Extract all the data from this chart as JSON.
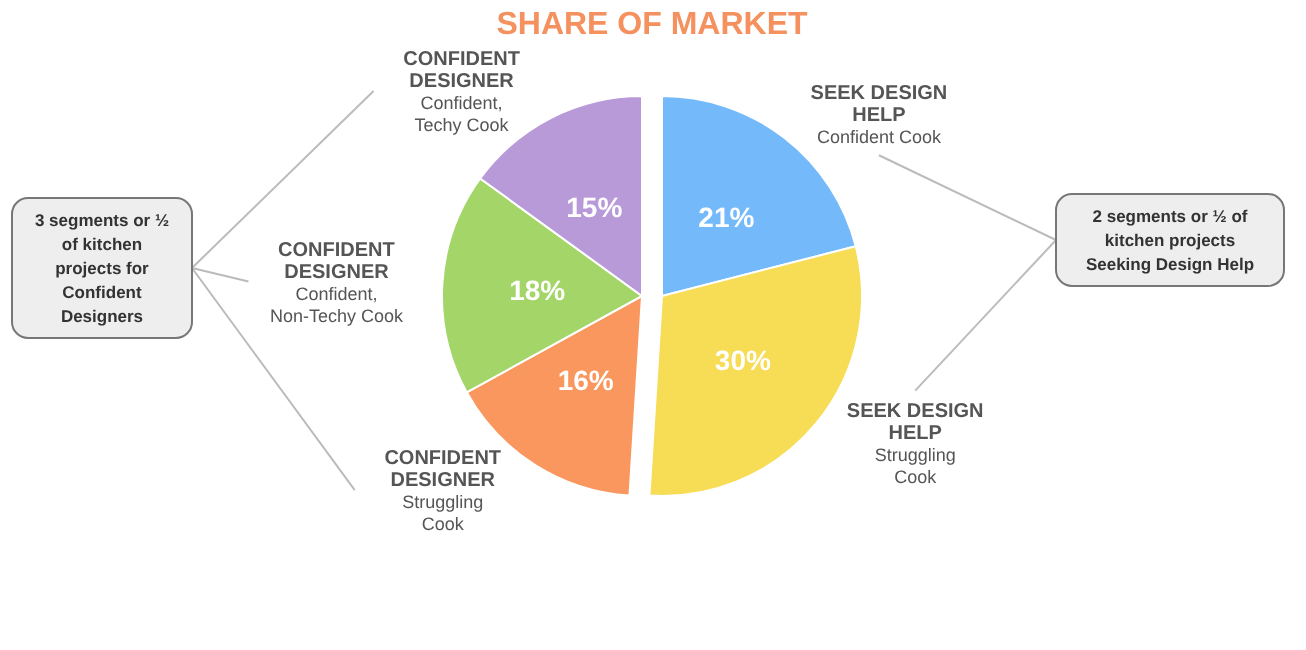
{
  "chart_data": {
    "type": "pie",
    "title": "SHARE OF MARKET",
    "categories": [
      "SEEK DESIGN HELP\nConfident Cook",
      "SEEK DESIGN HELP\nStruggling Cook",
      "CONFIDENT DESIGNER\nStruggling Cook",
      "CONFIDENT DESIGNER\nConfident, Non-Techy Cook",
      "CONFIDENT DESIGNER\nConfident, Techy Cook"
    ],
    "values": [
      21,
      30,
      16,
      18,
      15
    ],
    "colors": [
      "#74b9f9",
      "#f7dc55",
      "#f9975f",
      "#a3d568",
      "#b99ad8"
    ],
    "value_labels": [
      "21%",
      "30%",
      "16%",
      "18%",
      "15%"
    ],
    "annotations": [
      "3 segments or ½ of kitchen projects for Confident Designers",
      "2 segments or ½ of kitchen projects Seeking Design Help"
    ]
  }
}
